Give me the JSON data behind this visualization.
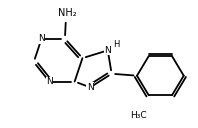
{
  "background_color": "#ffffff",
  "line_color": "#000000",
  "line_width": 1.3,
  "font_size": 6.5,
  "figsize": [
    1.98,
    1.28
  ],
  "dpi": 100,
  "xlim": [
    0,
    10
  ],
  "ylim": [
    0,
    6.5
  ],
  "N1": [
    2.05,
    4.55
  ],
  "C2": [
    1.65,
    3.35
  ],
  "N3": [
    2.45,
    2.35
  ],
  "C4": [
    3.75,
    2.35
  ],
  "C5": [
    4.15,
    3.55
  ],
  "C6": [
    3.25,
    4.55
  ],
  "N7": [
    5.45,
    3.95
  ],
  "C8": [
    5.65,
    2.75
  ],
  "N9": [
    4.55,
    2.05
  ],
  "Ph_c1": [
    6.95,
    2.65
  ],
  "Ph_c2": [
    7.55,
    3.65
  ],
  "Ph_c3": [
    8.75,
    3.65
  ],
  "Ph_c4": [
    9.35,
    2.65
  ],
  "Ph_c5": [
    8.75,
    1.65
  ],
  "Ph_c6": [
    7.55,
    1.65
  ],
  "NH2_x": 3.35,
  "NH2_y": 5.85,
  "NH2_bond_x2": 3.3,
  "NH2_bond_y2": 5.55,
  "Me_x": 7.0,
  "Me_y": 0.6,
  "Me_bond_x2": 7.55,
  "Me_bond_y2": 1.65
}
